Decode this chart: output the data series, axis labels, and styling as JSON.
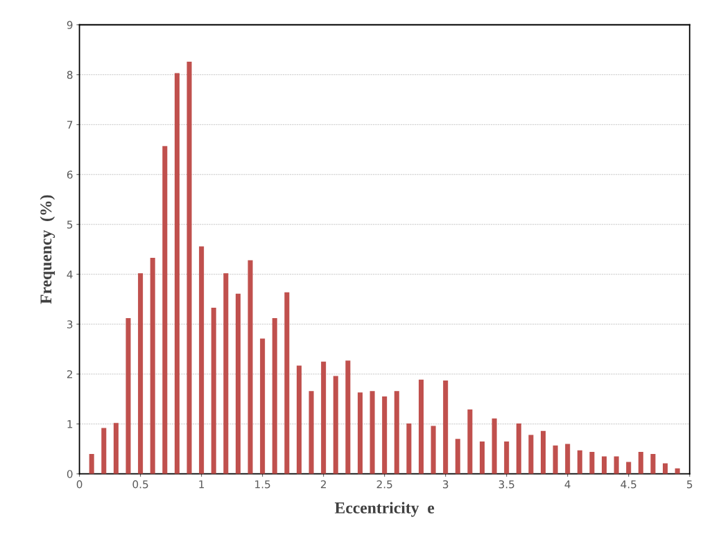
{
  "chart_data": {
    "type": "bar",
    "xlabel": "Eccentricity  e",
    "ylabel": "Frequency  (%)",
    "x": [
      0.1,
      0.2,
      0.3,
      0.4,
      0.5,
      0.6,
      0.7,
      0.8,
      0.9,
      1.0,
      1.1,
      1.2,
      1.3,
      1.4,
      1.5,
      1.6,
      1.7,
      1.8,
      1.9,
      2.0,
      2.1,
      2.2,
      2.3,
      2.4,
      2.5,
      2.6,
      2.7,
      2.8,
      2.9,
      3.0,
      3.1,
      3.2,
      3.3,
      3.4,
      3.5,
      3.6,
      3.7,
      3.8,
      3.9,
      4.0,
      4.1,
      4.2,
      4.3,
      4.4,
      4.5,
      4.6,
      4.7,
      4.8,
      4.9
    ],
    "values": [
      0.4,
      0.92,
      1.02,
      3.12,
      4.02,
      4.33,
      6.57,
      8.03,
      8.26,
      4.56,
      3.33,
      4.02,
      3.61,
      4.28,
      2.71,
      3.12,
      3.64,
      2.17,
      1.66,
      2.25,
      1.96,
      2.27,
      1.63,
      1.66,
      1.55,
      1.66,
      1.01,
      1.89,
      0.96,
      1.87,
      0.7,
      1.29,
      0.65,
      1.11,
      0.65,
      1.01,
      0.78,
      0.86,
      0.57,
      0.6,
      0.47,
      0.44,
      0.35,
      0.35,
      0.24,
      0.44,
      0.4,
      0.21,
      0.11
    ],
    "color": "#c0504d",
    "xlim": [
      0,
      5
    ],
    "xticks": [
      0,
      0.5,
      1,
      1.5,
      2,
      2.5,
      3,
      3.5,
      4,
      4.5,
      5
    ],
    "ylim": [
      0,
      9
    ],
    "yticks": [
      0,
      1,
      2,
      3,
      4,
      5,
      6,
      7,
      8,
      9
    ],
    "grid": "y"
  }
}
